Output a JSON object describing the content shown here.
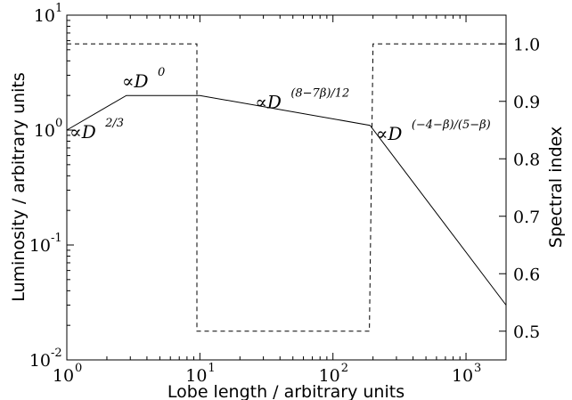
{
  "chart_data": {
    "type": "line",
    "title": "",
    "xlabel": "Lobe length / arbitrary units",
    "ylabel_left": "Luminosity / arbitrary units",
    "ylabel_right": "Spectral index",
    "xscale": "log",
    "yscale_left": "log",
    "xlim": [
      1,
      2000
    ],
    "ylim_left": [
      0.01,
      10
    ],
    "ylim_right": [
      0.45,
      1.05
    ],
    "grid": false,
    "legend": "none",
    "x_ticks": [
      {
        "base": "10",
        "exp": "0",
        "value": 1
      },
      {
        "base": "10",
        "exp": "1",
        "value": 10
      },
      {
        "base": "10",
        "exp": "2",
        "value": 100
      },
      {
        "base": "10",
        "exp": "3",
        "value": 1000
      }
    ],
    "y_left_ticks": [
      {
        "base": "10",
        "exp": "-2",
        "value": 0.01
      },
      {
        "base": "10",
        "exp": "-1",
        "value": 0.1
      },
      {
        "base": "10",
        "exp": "0",
        "value": 1
      },
      {
        "base": "10",
        "exp": "1",
        "value": 10
      }
    ],
    "y_right_ticks": [
      "0.5",
      "0.6",
      "0.7",
      "0.8",
      "0.9",
      "1.0"
    ],
    "series": [
      {
        "axis": "left",
        "style": "solid",
        "color": "#000000",
        "x": [
          1,
          2.8,
          10,
          190,
          2000
        ],
        "y": [
          1.0,
          2.0,
          2.0,
          1.1,
          0.03
        ]
      },
      {
        "axis": "right",
        "style": "dashed",
        "color": "#000000",
        "x": [
          1,
          9.5,
          9.5,
          10.5,
          10.5,
          188,
          188,
          200,
          200,
          2000
        ],
        "y": [
          1.0,
          1.0,
          0.5,
          0.5,
          0.5,
          0.5,
          0.5,
          1.0,
          1.0,
          1.0
        ]
      }
    ],
    "annotations": [
      {
        "prefix": "∝D",
        "sup": "2/3",
        "at_x": 1.05,
        "at_y": 0.85
      },
      {
        "prefix": "∝D",
        "sup": "0",
        "at_x": 2.6,
        "at_y": 2.35
      },
      {
        "prefix": "∝D",
        "sup": "(8−7β)/12",
        "at_x": 26,
        "at_y": 1.55
      },
      {
        "prefix": "∝D",
        "sup": "(−4−β)/(5−β)",
        "at_x": 210,
        "at_y": 0.82
      }
    ]
  }
}
